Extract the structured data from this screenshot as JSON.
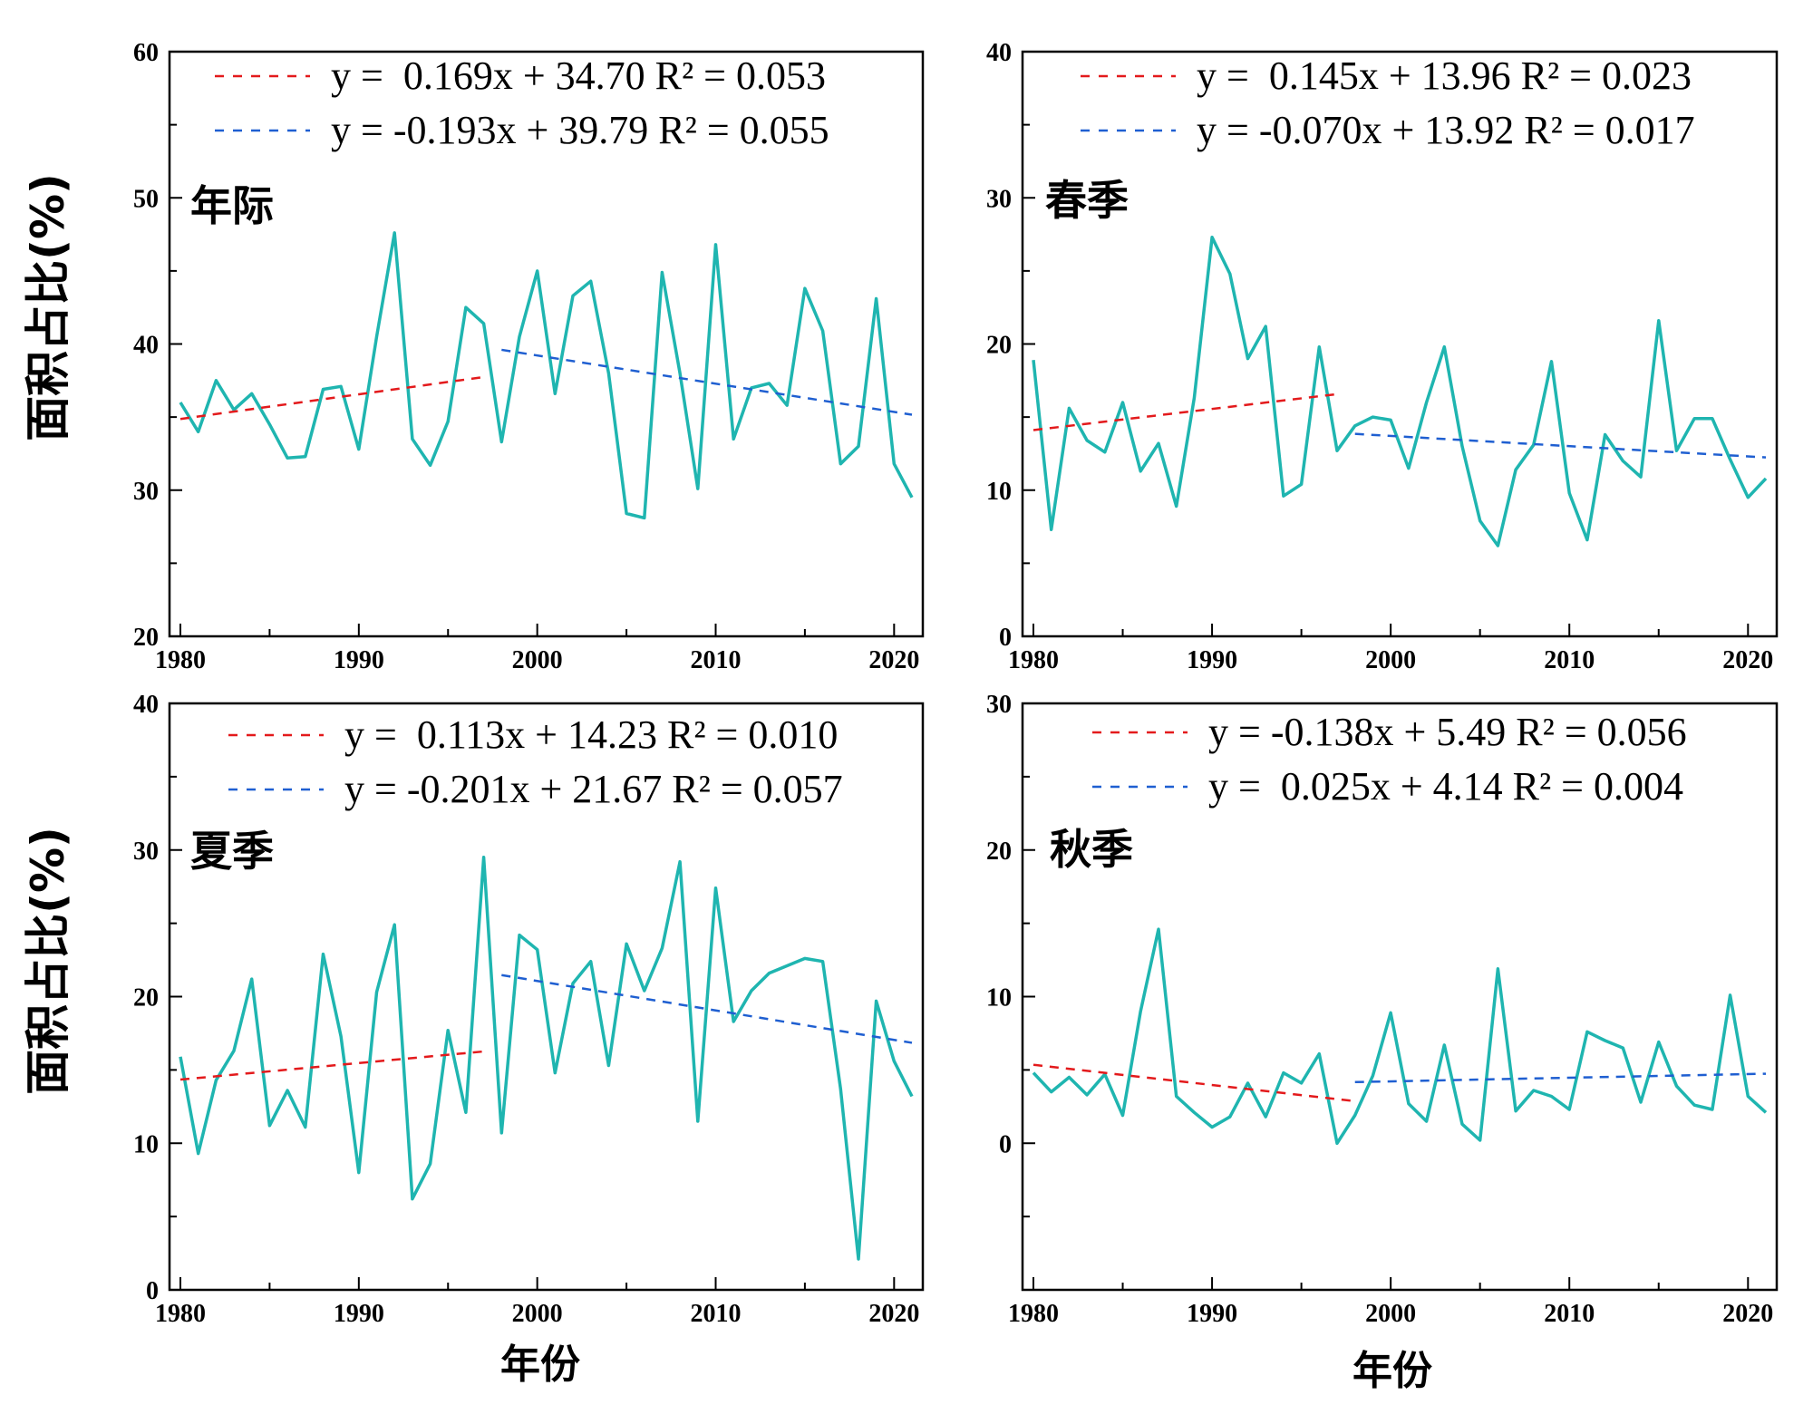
{
  "chart_data": [
    {
      "type": "line",
      "panel_label": "年际",
      "ylabel": "面积占比(%)",
      "xlabel": "",
      "xlim": [
        1980,
        2021
      ],
      "ylim": [
        20,
        60
      ],
      "xticks": [
        "1980",
        "1990",
        "2000",
        "2010",
        "2020"
      ],
      "yticks": [
        "20",
        "30",
        "40",
        "50",
        "60"
      ],
      "x": [
        1980,
        1981,
        1982,
        1983,
        1984,
        1985,
        1986,
        1987,
        1988,
        1989,
        1990,
        1991,
        1992,
        1993,
        1994,
        1995,
        1996,
        1997,
        1998,
        1999,
        2000,
        2001,
        2002,
        2003,
        2004,
        2005,
        2006,
        2007,
        2008,
        2009,
        2010,
        2011,
        2012,
        2013,
        2014,
        2015,
        2016,
        2017,
        2018,
        2019,
        2020,
        2021
      ],
      "series": [
        {
          "values": [
            36.0,
            34.0,
            37.5,
            35.5,
            36.6,
            34.5,
            32.2,
            32.3,
            36.9,
            37.1,
            32.8,
            40.5,
            47.6,
            33.5,
            31.7,
            34.7,
            42.5,
            41.4,
            33.3,
            40.5,
            45.0,
            36.6,
            43.3,
            44.3,
            38.0,
            28.4,
            28.1,
            44.9,
            38.0,
            30.1,
            46.8,
            33.5,
            37.0,
            37.3,
            35.8,
            43.8,
            40.9,
            31.8,
            33.0,
            43.1,
            31.8,
            29.5
          ]
        }
      ],
      "trends": [
        {
          "label": "y =  0.169x + 34.70 R² = 0.053",
          "color": "#e31a1c",
          "x": [
            1980,
            1997
          ],
          "y": [
            34.87,
            37.74
          ]
        },
        {
          "label": "y = -0.193x + 39.79 R² = 0.055",
          "color": "#1f5fd1",
          "x": [
            1998,
            2021
          ],
          "y": [
            39.6,
            35.16
          ]
        }
      ]
    },
    {
      "type": "line",
      "panel_label": "春季",
      "ylabel": "",
      "xlabel": "",
      "xlim": [
        1980,
        2021
      ],
      "ylim": [
        0,
        40
      ],
      "xticks": [
        "1980",
        "1990",
        "2000",
        "2010",
        "2020"
      ],
      "yticks": [
        "0",
        "10",
        "20",
        "30",
        "40"
      ],
      "x": [
        1980,
        1981,
        1982,
        1983,
        1984,
        1985,
        1986,
        1987,
        1988,
        1989,
        1990,
        1991,
        1992,
        1993,
        1994,
        1995,
        1996,
        1997,
        1998,
        1999,
        2000,
        2001,
        2002,
        2003,
        2004,
        2005,
        2006,
        2007,
        2008,
        2009,
        2010,
        2011,
        2012,
        2013,
        2014,
        2015,
        2016,
        2017,
        2018,
        2019,
        2020,
        2021
      ],
      "series": [
        {
          "values": [
            18.9,
            7.3,
            15.6,
            13.4,
            12.6,
            16.0,
            11.3,
            13.2,
            8.9,
            16.3,
            27.3,
            24.8,
            19.0,
            21.2,
            9.6,
            10.4,
            19.8,
            12.7,
            14.4,
            15.0,
            14.8,
            11.5,
            16.0,
            19.8,
            13.0,
            7.9,
            6.2,
            11.4,
            13.1,
            18.8,
            9.8,
            6.6,
            13.8,
            12.0,
            10.9,
            21.6,
            12.7,
            14.9,
            14.9,
            12.1,
            9.5,
            10.8
          ]
        }
      ],
      "trends": [
        {
          "label": "y =  0.145x + 13.96 R² = 0.023",
          "color": "#e31a1c",
          "x": [
            1980,
            1997
          ],
          "y": [
            14.11,
            16.57
          ]
        },
        {
          "label": "y = -0.070x + 13.92 R² = 0.017",
          "color": "#1f5fd1",
          "x": [
            1998,
            2021
          ],
          "y": [
            13.85,
            12.24
          ]
        }
      ]
    },
    {
      "type": "line",
      "panel_label": "夏季",
      "ylabel": "面积占比(%)",
      "xlabel": "年份",
      "xlim": [
        1980,
        2021
      ],
      "ylim": [
        0,
        40
      ],
      "xticks": [
        "1980",
        "1990",
        "2000",
        "2010",
        "2020"
      ],
      "yticks": [
        "0",
        "10",
        "20",
        "30",
        "40"
      ],
      "x": [
        1980,
        1981,
        1982,
        1983,
        1984,
        1985,
        1986,
        1987,
        1988,
        1989,
        1990,
        1991,
        1992,
        1993,
        1994,
        1995,
        1996,
        1997,
        1998,
        1999,
        2000,
        2001,
        2002,
        2003,
        2004,
        2005,
        2006,
        2007,
        2008,
        2009,
        2010,
        2011,
        2012,
        2013,
        2014,
        2015,
        2016,
        2017,
        2018,
        2019,
        2020,
        2021
      ],
      "series": [
        {
          "values": [
            15.9,
            9.3,
            14.3,
            16.3,
            21.2,
            11.2,
            13.6,
            11.1,
            22.9,
            17.3,
            8.0,
            20.3,
            24.9,
            6.2,
            8.6,
            17.7,
            12.1,
            29.5,
            10.7,
            24.2,
            23.2,
            14.8,
            20.9,
            22.4,
            15.3,
            23.6,
            20.4,
            23.3,
            29.2,
            11.5,
            27.4,
            18.3,
            20.4,
            21.6,
            22.1,
            22.6,
            22.4,
            13.7,
            2.1,
            19.7,
            15.6,
            13.2
          ]
        }
      ],
      "trends": [
        {
          "label": "y =  0.113x + 14.23 R² = 0.010",
          "color": "#e31a1c",
          "x": [
            1980,
            1997
          ],
          "y": [
            14.34,
            16.26
          ]
        },
        {
          "label": "y = -0.201x + 21.67 R² = 0.057",
          "color": "#1f5fd1",
          "x": [
            1998,
            2021
          ],
          "y": [
            21.47,
            16.85
          ]
        }
      ]
    },
    {
      "type": "line",
      "panel_label": "秋季",
      "ylabel": "",
      "xlabel": "年份",
      "xlim": [
        1980,
        2021
      ],
      "ylim": [
        -10,
        30
      ],
      "xticks": [
        "1980",
        "1990",
        "2000",
        "2010",
        "2020"
      ],
      "yticks": [
        "0",
        "10",
        "20",
        "30"
      ],
      "x": [
        1980,
        1981,
        1982,
        1983,
        1984,
        1985,
        1986,
        1987,
        1988,
        1989,
        1990,
        1991,
        1992,
        1993,
        1994,
        1995,
        1996,
        1997,
        1998,
        1999,
        2000,
        2001,
        2002,
        2003,
        2004,
        2005,
        2006,
        2007,
        2008,
        2009,
        2010,
        2011,
        2012,
        2013,
        2014,
        2015,
        2016,
        2017,
        2018,
        2019,
        2020,
        2021
      ],
      "series": [
        {
          "values": [
            4.8,
            3.5,
            4.5,
            3.3,
            4.7,
            1.9,
            9.0,
            14.6,
            3.2,
            2.1,
            1.1,
            1.8,
            4.1,
            1.8,
            4.8,
            4.1,
            6.1,
            0.0,
            1.9,
            4.6,
            8.9,
            2.7,
            1.5,
            6.7,
            1.3,
            0.2,
            11.9,
            2.2,
            3.6,
            3.2,
            2.3,
            7.6,
            7.0,
            6.5,
            2.8,
            6.9,
            3.9,
            2.6,
            2.3,
            10.1,
            3.2,
            2.1
          ]
        }
      ],
      "trends": [
        {
          "label": "y = -0.138x + 5.49 R² = 0.056",
          "color": "#e31a1c",
          "x": [
            1980,
            1998
          ],
          "y": [
            5.35,
            2.87
          ]
        },
        {
          "label": "y =  0.025x + 4.14 R² = 0.004",
          "color": "#1f5fd1",
          "x": [
            1998,
            2021
          ],
          "y": [
            4.17,
            4.74
          ]
        }
      ]
    }
  ],
  "colors": {
    "series_line": "#1fb5b0",
    "axis": "#000000"
  }
}
